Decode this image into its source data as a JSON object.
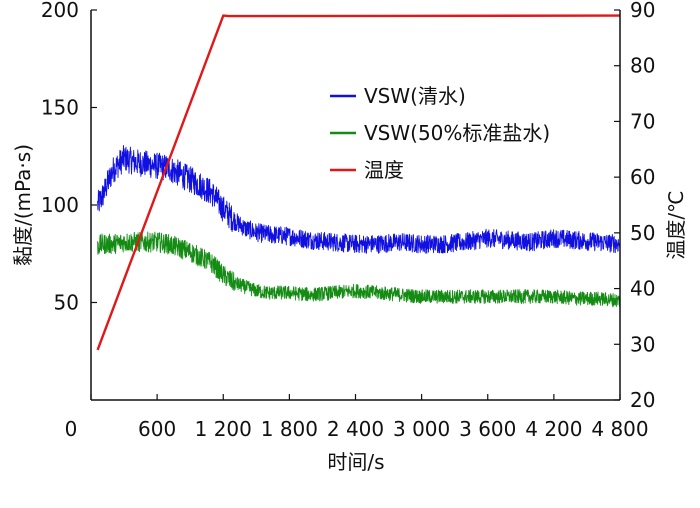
{
  "chart_data": {
    "type": "line",
    "title": "",
    "xlabel": "时间/s",
    "ylabel_left": "黏度/(mPa·s)",
    "ylabel_right": "温度/℃",
    "xlim": [
      0,
      4800
    ],
    "ylim_left": [
      0,
      200
    ],
    "ylim_right": [
      20,
      90
    ],
    "x_ticks": [
      0,
      600,
      1200,
      1800,
      2400,
      3000,
      3600,
      4200,
      4800
    ],
    "x_tick_labels": [
      "0",
      "600",
      "1 200",
      "1 800",
      "2 400",
      "3 000",
      "3 600",
      "4 200",
      "4 800"
    ],
    "y_left_ticks": [
      50,
      100,
      150,
      200
    ],
    "y_left_tick_labels": [
      "50",
      "100",
      "150",
      "200"
    ],
    "y_right_ticks": [
      20,
      30,
      40,
      50,
      60,
      70,
      80,
      90
    ],
    "y_right_tick_labels": [
      "20",
      "30",
      "40",
      "50",
      "60",
      "70",
      "80",
      "90"
    ],
    "grid": false,
    "legend_position": "top-right",
    "series": [
      {
        "name": "VSW(清水)",
        "axis": "left",
        "color": "#1010e0",
        "noise": 6,
        "x": [
          60,
          100,
          200,
          300,
          400,
          500,
          600,
          700,
          800,
          900,
          1000,
          1100,
          1200,
          1300,
          1400,
          1500,
          1600,
          1800,
          2000,
          2200,
          2400,
          2600,
          2800,
          3000,
          3200,
          3400,
          3600,
          3800,
          4000,
          4200,
          4400,
          4600,
          4800
        ],
        "y": [
          100,
          104,
          118,
          124,
          122,
          121,
          120,
          119,
          116,
          113,
          110,
          106,
          98,
          92,
          88,
          86,
          85,
          84,
          82,
          81,
          80,
          80,
          81,
          80,
          80,
          81,
          83,
          82,
          81,
          83,
          82,
          81,
          80
        ]
      },
      {
        "name": "VSW(50%标准盐水)",
        "axis": "left",
        "color": "#148c14",
        "noise": 4.5,
        "x": [
          60,
          100,
          200,
          300,
          400,
          500,
          600,
          700,
          800,
          900,
          1000,
          1100,
          1200,
          1300,
          1400,
          1500,
          1600,
          1800,
          2000,
          2200,
          2400,
          2600,
          2800,
          3000,
          3200,
          3400,
          3600,
          3800,
          4000,
          4200,
          4400,
          4600,
          4800
        ],
        "y": [
          79,
          80,
          80,
          81,
          81,
          81,
          81,
          80,
          78,
          76,
          73,
          70,
          64,
          60,
          58,
          56,
          55,
          55,
          54,
          55,
          56,
          55,
          54,
          53,
          53,
          53,
          53,
          53,
          53,
          53,
          52,
          52,
          51
        ]
      },
      {
        "name": "温度",
        "axis": "right",
        "color": "#e01818",
        "noise": 0,
        "x": [
          60,
          1200,
          1250,
          4800
        ],
        "y": [
          29,
          89,
          89,
          89
        ]
      }
    ]
  }
}
